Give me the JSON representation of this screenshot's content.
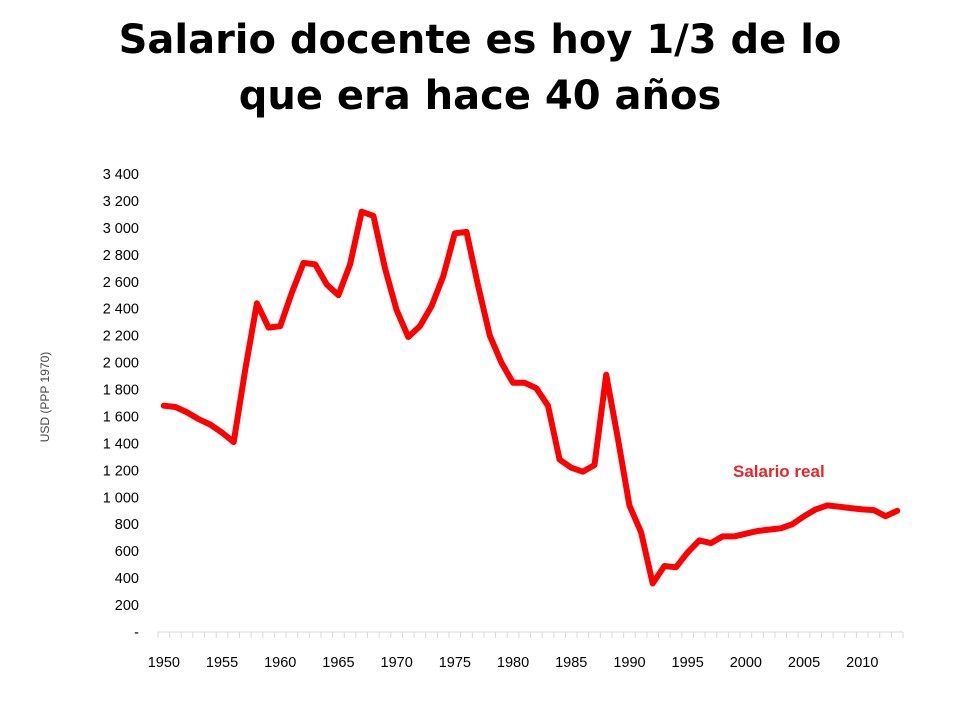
{
  "slide": {
    "title_line1": "Salario docente es hoy 1/3 de lo",
    "title_line2": "que era hace 40 años"
  },
  "chart_data": {
    "type": "line",
    "ylabel": "USD (PPP 1970)",
    "ylim": [
      0,
      3400
    ],
    "ytick_values": [
      0,
      200,
      400,
      600,
      800,
      1000,
      1200,
      1400,
      1600,
      1800,
      2000,
      2200,
      2400,
      2600,
      2800,
      3000,
      3200,
      3400
    ],
    "ytick_labels": [
      "-",
      "200",
      "400",
      "600",
      "800",
      "1 000",
      "1 200",
      "1 400",
      "1 600",
      "1 800",
      "2 000",
      "2 200",
      "2 400",
      "2 600",
      "2 800",
      "3 000",
      "3 200",
      "3 400"
    ],
    "xlim": [
      1950,
      2013
    ],
    "xtick_labels": [
      "1950",
      "1955",
      "1960",
      "1965",
      "1970",
      "1975",
      "1980",
      "1985",
      "1990",
      "1995",
      "2000",
      "2005",
      "2010"
    ],
    "grid": false,
    "colors": {
      "series": "#ff0000",
      "label": "#e8262a"
    },
    "series": [
      {
        "name": "Salario real",
        "x": [
          1950,
          1951,
          1952,
          1953,
          1954,
          1955,
          1956,
          1957,
          1958,
          1959,
          1960,
          1961,
          1962,
          1963,
          1964,
          1965,
          1966,
          1967,
          1968,
          1969,
          1970,
          1971,
          1972,
          1973,
          1974,
          1975,
          1976,
          1977,
          1978,
          1979,
          1980,
          1981,
          1982,
          1983,
          1984,
          1985,
          1986,
          1987,
          1988,
          1989,
          1990,
          1991,
          1992,
          1993,
          1994,
          1995,
          1996,
          1997,
          1998,
          1999,
          2000,
          2001,
          2002,
          2003,
          2004,
          2005,
          2006,
          2007,
          2008,
          2009,
          2010,
          2011,
          2012,
          2013
        ],
        "y": [
          1680,
          1670,
          1630,
          1580,
          1540,
          1480,
          1410,
          1950,
          2440,
          2260,
          2270,
          2520,
          2740,
          2730,
          2580,
          2500,
          2730,
          3120,
          3090,
          2700,
          2390,
          2190,
          2270,
          2420,
          2640,
          2960,
          2970,
          2570,
          2200,
          2000,
          1850,
          1850,
          1810,
          1680,
          1280,
          1220,
          1190,
          1240,
          1910,
          1440,
          940,
          740,
          360,
          490,
          480,
          590,
          680,
          660,
          710,
          710,
          730,
          750,
          760,
          770,
          800,
          860,
          910,
          940,
          930,
          920,
          910,
          905,
          860,
          900
        ]
      }
    ]
  }
}
